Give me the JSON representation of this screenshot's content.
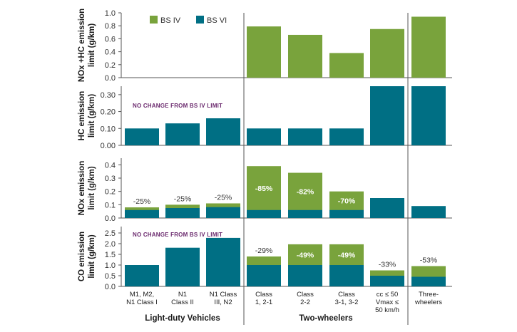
{
  "legend": {
    "items": [
      {
        "label": "BS IV",
        "color": "#79a33c"
      },
      {
        "label": "BS VI",
        "color": "#006f84"
      }
    ]
  },
  "groups": [
    {
      "label": "Light-duty Vehicles"
    },
    {
      "label": "Two-wheelers"
    }
  ],
  "categories": [
    "M1, M2, N1 Class I",
    "N1 Class II",
    "N1 Class III, N2",
    "Class 1, 2-1",
    "Class 2-2",
    "Class 3-1, 3-2",
    "cc ≤ 50 Vmax ≤ 50 km/h",
    "Three-wheelers"
  ],
  "chart_data": [
    {
      "type": "bar",
      "ylabel": "NOx +HC emission limit (g/km)",
      "ylim": [
        0,
        1.0
      ],
      "yticks": [
        "0.0",
        "0.2",
        "0.4",
        "0.6",
        "0.8",
        "1.0"
      ],
      "series": [
        {
          "name": "BS IV",
          "values": [
            null,
            null,
            null,
            0.79,
            0.66,
            0.38,
            0.75,
            0.94
          ]
        },
        {
          "name": "BS VI",
          "values": [
            null,
            null,
            null,
            null,
            null,
            null,
            null,
            null
          ]
        }
      ]
    },
    {
      "type": "bar",
      "ylabel": "HC emission limit (g/km)",
      "ylim": [
        0,
        0.35
      ],
      "yticks": [
        "0.00",
        "0.10",
        "0.20",
        "0.30"
      ],
      "note": "NO CHANGE FROM BS IV LIMIT",
      "series": [
        {
          "name": "BS VI",
          "values": [
            0.1,
            0.13,
            0.16,
            0.1,
            0.1,
            0.1,
            0.35,
            0.35
          ]
        }
      ]
    },
    {
      "type": "bar",
      "ylabel": "NOx emission limit (g/km)",
      "ylim": [
        0,
        0.45
      ],
      "yticks": [
        "0.0",
        "0.1",
        "0.2",
        "0.3",
        "0.4"
      ],
      "series": [
        {
          "name": "BS IV",
          "values": [
            0.08,
            0.1,
            0.11,
            0.39,
            0.34,
            0.2,
            null,
            null
          ]
        },
        {
          "name": "BS VI",
          "values": [
            0.06,
            0.075,
            0.082,
            0.06,
            0.06,
            0.06,
            0.15,
            0.09
          ]
        }
      ],
      "annotations": [
        "-25%",
        "-25%",
        "-25%",
        "-85%",
        "-82%",
        "-70%",
        "",
        ""
      ]
    },
    {
      "type": "bar",
      "ylabel": "CO emission limit (g/km)",
      "ylim": [
        0,
        2.8
      ],
      "yticks": [
        "0.0",
        "0.5",
        "1.0",
        "1.5",
        "2.0",
        "2.5"
      ],
      "note": "NO CHANGE FROM BS IV LIMIT",
      "series": [
        {
          "name": "BS IV",
          "values": [
            null,
            null,
            null,
            1.4,
            1.97,
            1.97,
            0.75,
            0.95
          ]
        },
        {
          "name": "BS VI",
          "values": [
            1.0,
            1.81,
            2.27,
            1.0,
            1.0,
            1.0,
            0.5,
            0.45
          ]
        }
      ],
      "annotations": [
        "",
        "",
        "",
        "-29%",
        "-49%",
        "-49%",
        "-33%",
        "-53%"
      ]
    }
  ]
}
